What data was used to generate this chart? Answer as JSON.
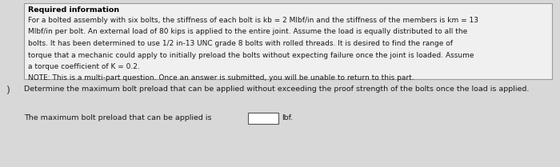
{
  "required_info_title": "Required information",
  "required_info_line1": "For a bolted assembly with six bolts, the stiffness of each bolt is kb = 2 Mlbf/in and the stiffness of the members is km = 13",
  "required_info_line2": "Mlbf/in per bolt. An external load of 80 kips is applied to the entire joint. Assume the load is equally distributed to all the",
  "required_info_line3": "bolts. It has been determined to use 1/2 in-13 UNC grade 8 bolts with rolled threads. It is desired to find the range of",
  "required_info_line4": "torque that a mechanic could apply to initially preload the bolts without expecting failure once the joint is loaded. Assume",
  "required_info_line5": "a torque coefficient of K = 0.2.",
  "required_info_line6": "NOTE: This is a multi-part question. Once an answer is submitted, you will be unable to return to this part.",
  "question_text": "Determine the maximum bolt preload that can be applied without exceeding the proof strength of the bolts once the load is applied.",
  "answer_label": "The maximum bolt preload that can be applied is",
  "answer_unit": "lbf.",
  "bg_color": "#d8d8d8",
  "box_color": "#f0f0f0",
  "border_color": "#999999",
  "text_color": "#1a1a1a",
  "title_color": "#000000",
  "font_size_title": 6.8,
  "font_size_body": 6.5,
  "font_size_question": 6.8,
  "font_size_answer": 6.8
}
